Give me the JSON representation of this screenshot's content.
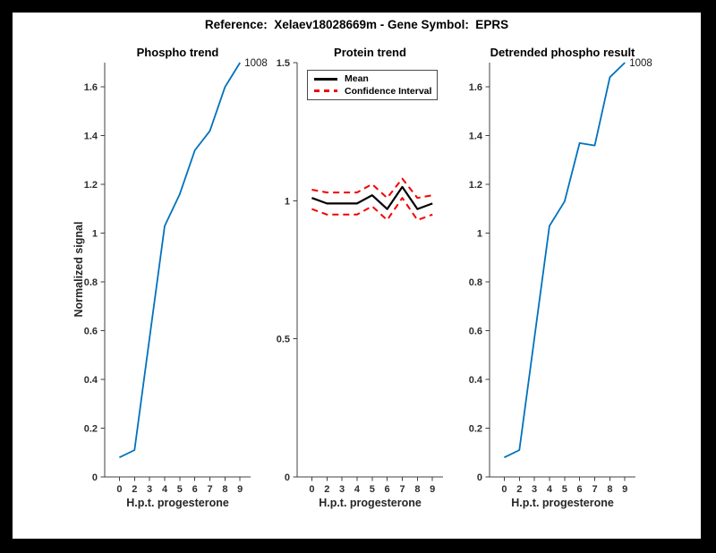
{
  "figure": {
    "title": "Reference:  Xelaev18028669m - Gene Symbol:  EPRS",
    "frame_color": "#000000",
    "canvas_color": "#ffffff",
    "axis_color": "#404040",
    "tick_text_color": "#2e2e2e"
  },
  "chart_data": [
    {
      "type": "line",
      "title": "Phospho trend",
      "xlabel": "H.p.t. progesterone",
      "ylabel": "Normalized signal",
      "categories": [
        "0",
        "2",
        "3",
        "4",
        "5",
        "6",
        "7",
        "8",
        "9"
      ],
      "ylim": [
        0,
        1.7
      ],
      "yticks": [
        0,
        0.2,
        0.4,
        0.6,
        0.8,
        1,
        1.2,
        1.4,
        1.6
      ],
      "ytick_labels": [
        "0",
        "0.2",
        "0.4",
        "0.6",
        "0.8",
        "1",
        "1.2",
        "1.4",
        "1.6"
      ],
      "grid": false,
      "end_label": "1008",
      "series": [
        {
          "name": "1008",
          "color": "#0072bd",
          "style": "solid",
          "values": [
            0.08,
            0.11,
            0.57,
            1.03,
            1.16,
            1.34,
            1.42,
            1.6,
            1.7
          ]
        }
      ]
    },
    {
      "type": "line",
      "title": "Protein trend",
      "xlabel": "H.p.t. progesterone",
      "ylabel": "",
      "categories": [
        "0",
        "2",
        "3",
        "4",
        "5",
        "6",
        "7",
        "8",
        "9"
      ],
      "ylim": [
        0,
        1.5
      ],
      "yticks": [
        0,
        0.5,
        1,
        1.5
      ],
      "ytick_labels": [
        "0",
        "0.5",
        "1",
        "1.5"
      ],
      "grid": false,
      "end_label": "",
      "series": [
        {
          "name": "Mean",
          "color": "#000000",
          "style": "solid",
          "values": [
            1.01,
            0.99,
            0.99,
            0.99,
            1.02,
            0.97,
            1.05,
            0.97,
            0.99
          ]
        },
        {
          "name": "Confidence Interval upper",
          "color": "#f20000",
          "style": "dashed",
          "values": [
            1.04,
            1.03,
            1.03,
            1.03,
            1.06,
            1.01,
            1.08,
            1.01,
            1.02
          ]
        },
        {
          "name": "Confidence Interval lower",
          "color": "#f20000",
          "style": "dashed",
          "values": [
            0.97,
            0.95,
            0.95,
            0.95,
            0.98,
            0.93,
            1.01,
            0.93,
            0.95
          ]
        }
      ],
      "legend": {
        "position": "top-left-inside",
        "entries": [
          {
            "label": "Mean",
            "color": "#000000",
            "style": "solid"
          },
          {
            "label": "Confidence Interval",
            "color": "#f20000",
            "style": "dashed"
          }
        ]
      }
    },
    {
      "type": "line",
      "title": "Detrended phospho result",
      "xlabel": "H.p.t. progesterone",
      "ylabel": "",
      "categories": [
        "0",
        "2",
        "3",
        "4",
        "5",
        "6",
        "7",
        "8",
        "9"
      ],
      "ylim": [
        0,
        1.7
      ],
      "yticks": [
        0,
        0.2,
        0.4,
        0.6,
        0.8,
        1,
        1.2,
        1.4,
        1.6
      ],
      "ytick_labels": [
        "0",
        "0.2",
        "0.4",
        "0.6",
        "0.8",
        "1",
        "1.2",
        "1.4",
        "1.6"
      ],
      "grid": false,
      "end_label": "1008",
      "series": [
        {
          "name": "1008",
          "color": "#0072bd",
          "style": "solid",
          "values": [
            0.08,
            0.11,
            0.57,
            1.03,
            1.13,
            1.37,
            1.36,
            1.64,
            1.7
          ]
        }
      ]
    }
  ]
}
